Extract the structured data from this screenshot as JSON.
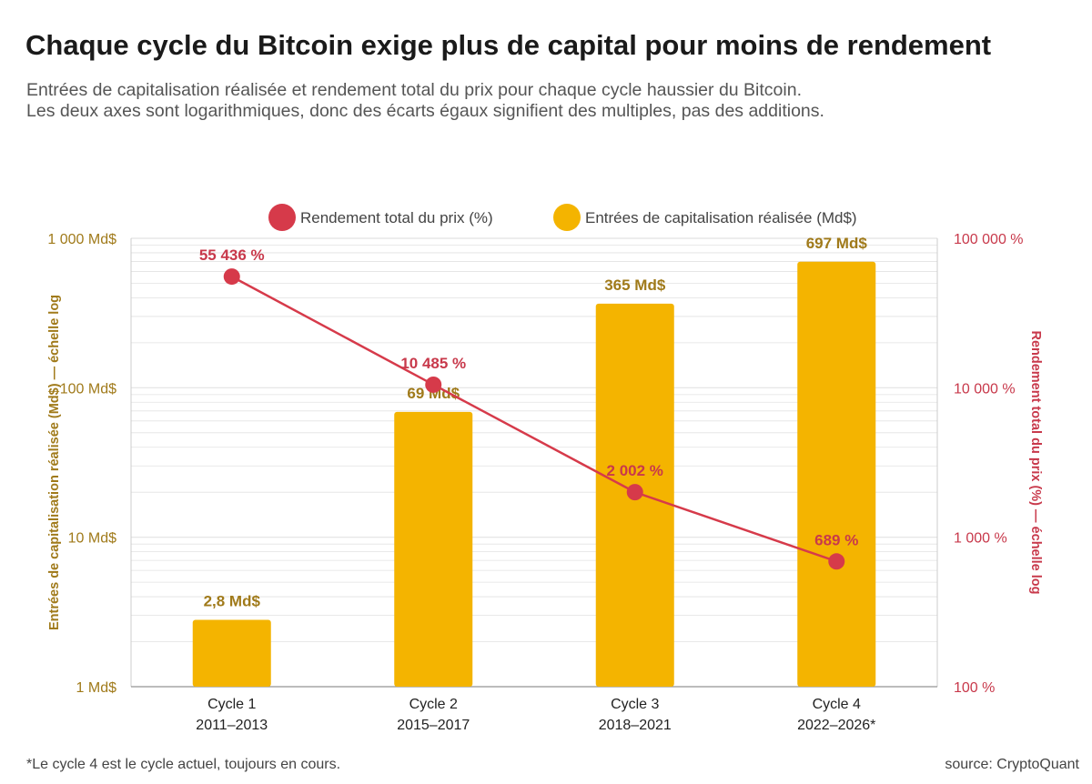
{
  "header": {
    "title": "Chaque cycle du Bitcoin exige plus de capital pour moins de rendement",
    "subtitle_line1": "Entrées de capitalisation réalisée et rendement total du prix pour chaque cycle haussier du Bitcoin.",
    "subtitle_line2": "Les deux axes sont logarithmiques, donc des écarts égaux signifient des multiples, pas des additions."
  },
  "footer": {
    "footnote": "*Le cycle 4 est le cycle actuel, toujours en cours.",
    "source": "source: CryptoQuant"
  },
  "colors": {
    "bar": "#F4B400",
    "line": "#D63A4A",
    "left_axis_text": "#A07A1A",
    "right_axis_text": "#C8394B",
    "grid": "#E2E2E2"
  },
  "chart_data": {
    "type": "bar",
    "scale": "log",
    "categories": [
      "Cycle 1",
      "Cycle 2",
      "Cycle 3",
      "Cycle 4"
    ],
    "category_sublabels": [
      "2011–2013",
      "2015–2017",
      "2018–2021",
      "2022–2026*"
    ],
    "legend_position": "top-center",
    "grid": true,
    "series": [
      {
        "name": "Entrées de capitalisation réalisée (Md$)",
        "type": "bar",
        "axis": "left",
        "values": [
          2.8,
          69,
          365,
          697
        ],
        "data_labels": [
          "2,8 Md$",
          "69 Md$",
          "365 Md$",
          "697 Md$"
        ]
      },
      {
        "name": "Rendement total du prix (%)",
        "type": "line",
        "axis": "right",
        "values": [
          55436,
          10485,
          2002,
          689
        ],
        "data_labels": [
          "55 436 %",
          "10 485 %",
          "2 002 %",
          "689 %"
        ]
      }
    ],
    "y_left": {
      "label": "Entrées de capitalisation réalisée (Md$) — échelle log",
      "ylim": [
        1,
        1000
      ],
      "ticks": [
        1,
        10,
        100,
        1000
      ],
      "tick_labels": [
        "1 Md$",
        "10 Md$",
        "100 Md$",
        "1 000 Md$"
      ]
    },
    "y_right": {
      "label": "Rendement total du prix (%) — échelle log",
      "ylim": [
        100,
        100000
      ],
      "ticks": [
        100,
        1000,
        10000,
        100000
      ],
      "tick_labels": [
        "100 %",
        "1 000 %",
        "10 000 %",
        "100 000 %"
      ]
    }
  }
}
